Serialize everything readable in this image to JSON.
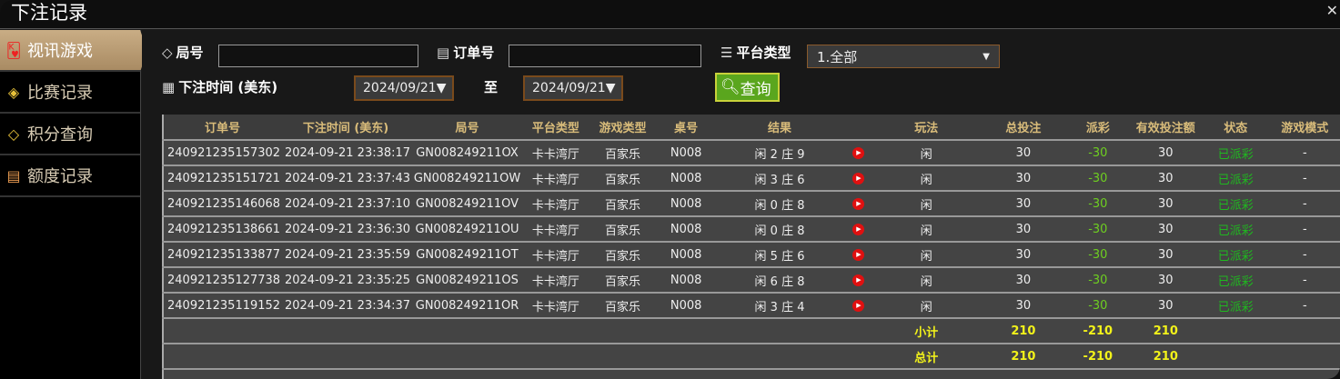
{
  "window": {
    "title": "下注记录",
    "close_icon": "close-icon"
  },
  "sidebar": {
    "items": [
      {
        "label": "视讯游戏",
        "icon": "playing-cards-icon",
        "active": true
      },
      {
        "label": "比赛记录",
        "icon": "ticket-icon"
      },
      {
        "label": "积分查询",
        "icon": "diamond-icon"
      },
      {
        "label": "额度记录",
        "icon": "document-icon"
      }
    ]
  },
  "filters": {
    "round_label": "局号",
    "round_value": "",
    "order_label": "订单号",
    "order_value": "",
    "platform_label": "平台类型",
    "platform_value": "1.全部",
    "time_label": "下注时间 (美东)",
    "date_from": "2024/09/21",
    "to_label": "至",
    "date_to": "2024/09/21",
    "query_label": "查询"
  },
  "table": {
    "headers": [
      "订单号",
      "下注时间 (美东)",
      "局号",
      "平台类型",
      "游戏类型",
      "桌号",
      "结果",
      "",
      "玩法",
      "总投注",
      "派彩",
      "有效投注额",
      "状态",
      "游戏模式"
    ],
    "rows": [
      [
        "240921235157302",
        "2024-09-21 23:38:17",
        "GN008249211OX",
        "卡卡湾厅",
        "百家乐",
        "N008",
        "闲 2 庄 9",
        "闲",
        "30",
        "-30",
        "30",
        "已派彩",
        "-"
      ],
      [
        "240921235151721",
        "2024-09-21 23:37:43",
        "GN008249211OW",
        "卡卡湾厅",
        "百家乐",
        "N008",
        "闲 3 庄 6",
        "闲",
        "30",
        "-30",
        "30",
        "已派彩",
        "-"
      ],
      [
        "240921235146068",
        "2024-09-21 23:37:10",
        "GN008249211OV",
        "卡卡湾厅",
        "百家乐",
        "N008",
        "闲 0 庄 8",
        "闲",
        "30",
        "-30",
        "30",
        "已派彩",
        "-"
      ],
      [
        "240921235138661",
        "2024-09-21 23:36:30",
        "GN008249211OU",
        "卡卡湾厅",
        "百家乐",
        "N008",
        "闲 0 庄 8",
        "闲",
        "30",
        "-30",
        "30",
        "已派彩",
        "-"
      ],
      [
        "240921235133877",
        "2024-09-21 23:35:59",
        "GN008249211OT",
        "卡卡湾厅",
        "百家乐",
        "N008",
        "闲 5 庄 6",
        "闲",
        "30",
        "-30",
        "30",
        "已派彩",
        "-"
      ],
      [
        "240921235127738",
        "2024-09-21 23:35:25",
        "GN008249211OS",
        "卡卡湾厅",
        "百家乐",
        "N008",
        "闲 6 庄 8",
        "闲",
        "30",
        "-30",
        "30",
        "已派彩",
        "-"
      ],
      [
        "240921235119152",
        "2024-09-21 23:34:37",
        "GN008249211OR",
        "卡卡湾厅",
        "百家乐",
        "N008",
        "闲 3 庄 4",
        "闲",
        "30",
        "-30",
        "30",
        "已派彩",
        "-"
      ]
    ],
    "subtotal": {
      "label": "小计",
      "total_bet": "210",
      "payout": "-210",
      "valid_bet": "210"
    },
    "total": {
      "label": "总计",
      "total_bet": "210",
      "payout": "-210",
      "valid_bet": "210"
    }
  },
  "colors": {
    "accent": "#c9ad85",
    "header_text": "#d9bc7a",
    "payout": "#6ecf20",
    "status": "#1fb81f",
    "summary": "#f2f21a",
    "query_button": "#5aa61e"
  }
}
